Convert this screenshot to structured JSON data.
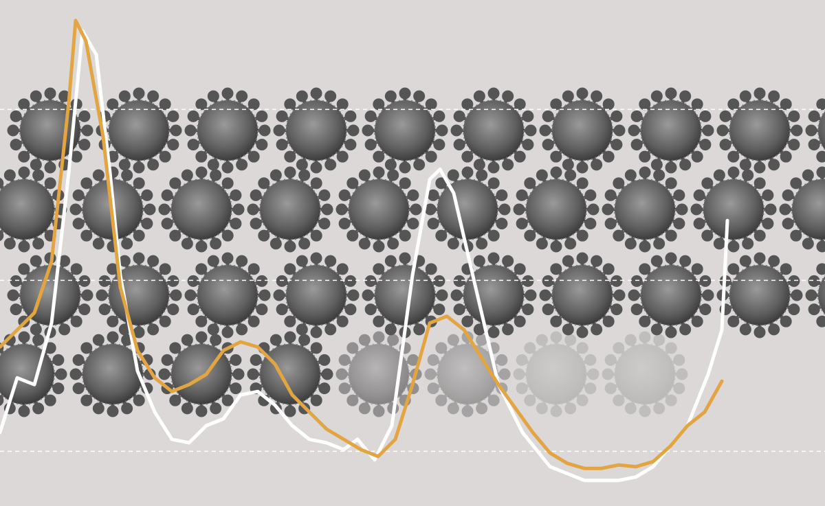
{
  "chart_data": {
    "type": "line",
    "xlim": [
      0,
      1200
    ],
    "ylim": [
      -0.32,
      2.64
    ],
    "yticks": [
      0,
      1,
      2
    ],
    "grid": true,
    "series": [
      {
        "color": "#ffffff",
        "x": [
          0,
          25,
          50,
          75,
          100,
          120,
          140,
          160,
          175,
          200,
          225,
          250,
          275,
          300,
          325,
          350,
          375,
          400,
          425,
          450,
          475,
          500,
          520,
          545,
          570,
          600,
          625,
          640,
          660,
          690,
          725,
          760,
          800,
          850,
          900,
          925,
          950,
          1000,
          1030,
          1050,
          1058
        ],
        "values": [
          0.11,
          0.43,
          0.39,
          0.75,
          1.63,
          2.46,
          2.32,
          1.63,
          1.03,
          0.47,
          0.23,
          0.07,
          0.05,
          0.15,
          0.19,
          0.33,
          0.35,
          0.27,
          0.15,
          0.07,
          0.05,
          0.01,
          0.07,
          -0.05,
          0.15,
          1.03,
          1.59,
          1.65,
          1.51,
          0.99,
          0.39,
          0.11,
          -0.09,
          -0.17,
          -0.17,
          -0.15,
          -0.09,
          0.15,
          0.45,
          0.71,
          1.35
        ]
      },
      {
        "color": "#e3a541",
        "x": [
          0,
          25,
          50,
          75,
          100,
          110,
          125,
          150,
          175,
          200,
          225,
          250,
          275,
          300,
          325,
          350,
          375,
          400,
          425,
          450,
          475,
          500,
          525,
          550,
          575,
          600,
          625,
          650,
          675,
          700,
          725,
          750,
          775,
          800,
          825,
          850,
          875,
          900,
          925,
          950,
          975,
          1000,
          1025,
          1050
        ],
        "values": [
          0.61,
          0.71,
          0.81,
          1.11,
          2.04,
          2.52,
          2.4,
          1.84,
          0.96,
          0.59,
          0.43,
          0.35,
          0.39,
          0.45,
          0.59,
          0.64,
          0.61,
          0.51,
          0.33,
          0.23,
          0.13,
          0.07,
          0.01,
          -0.03,
          0.07,
          0.39,
          0.75,
          0.79,
          0.71,
          0.55,
          0.39,
          0.25,
          0.11,
          -0.01,
          -0.07,
          -0.1,
          -0.1,
          -0.08,
          -0.09,
          -0.06,
          0.03,
          0.15,
          0.23,
          0.41
        ]
      }
    ]
  }
}
